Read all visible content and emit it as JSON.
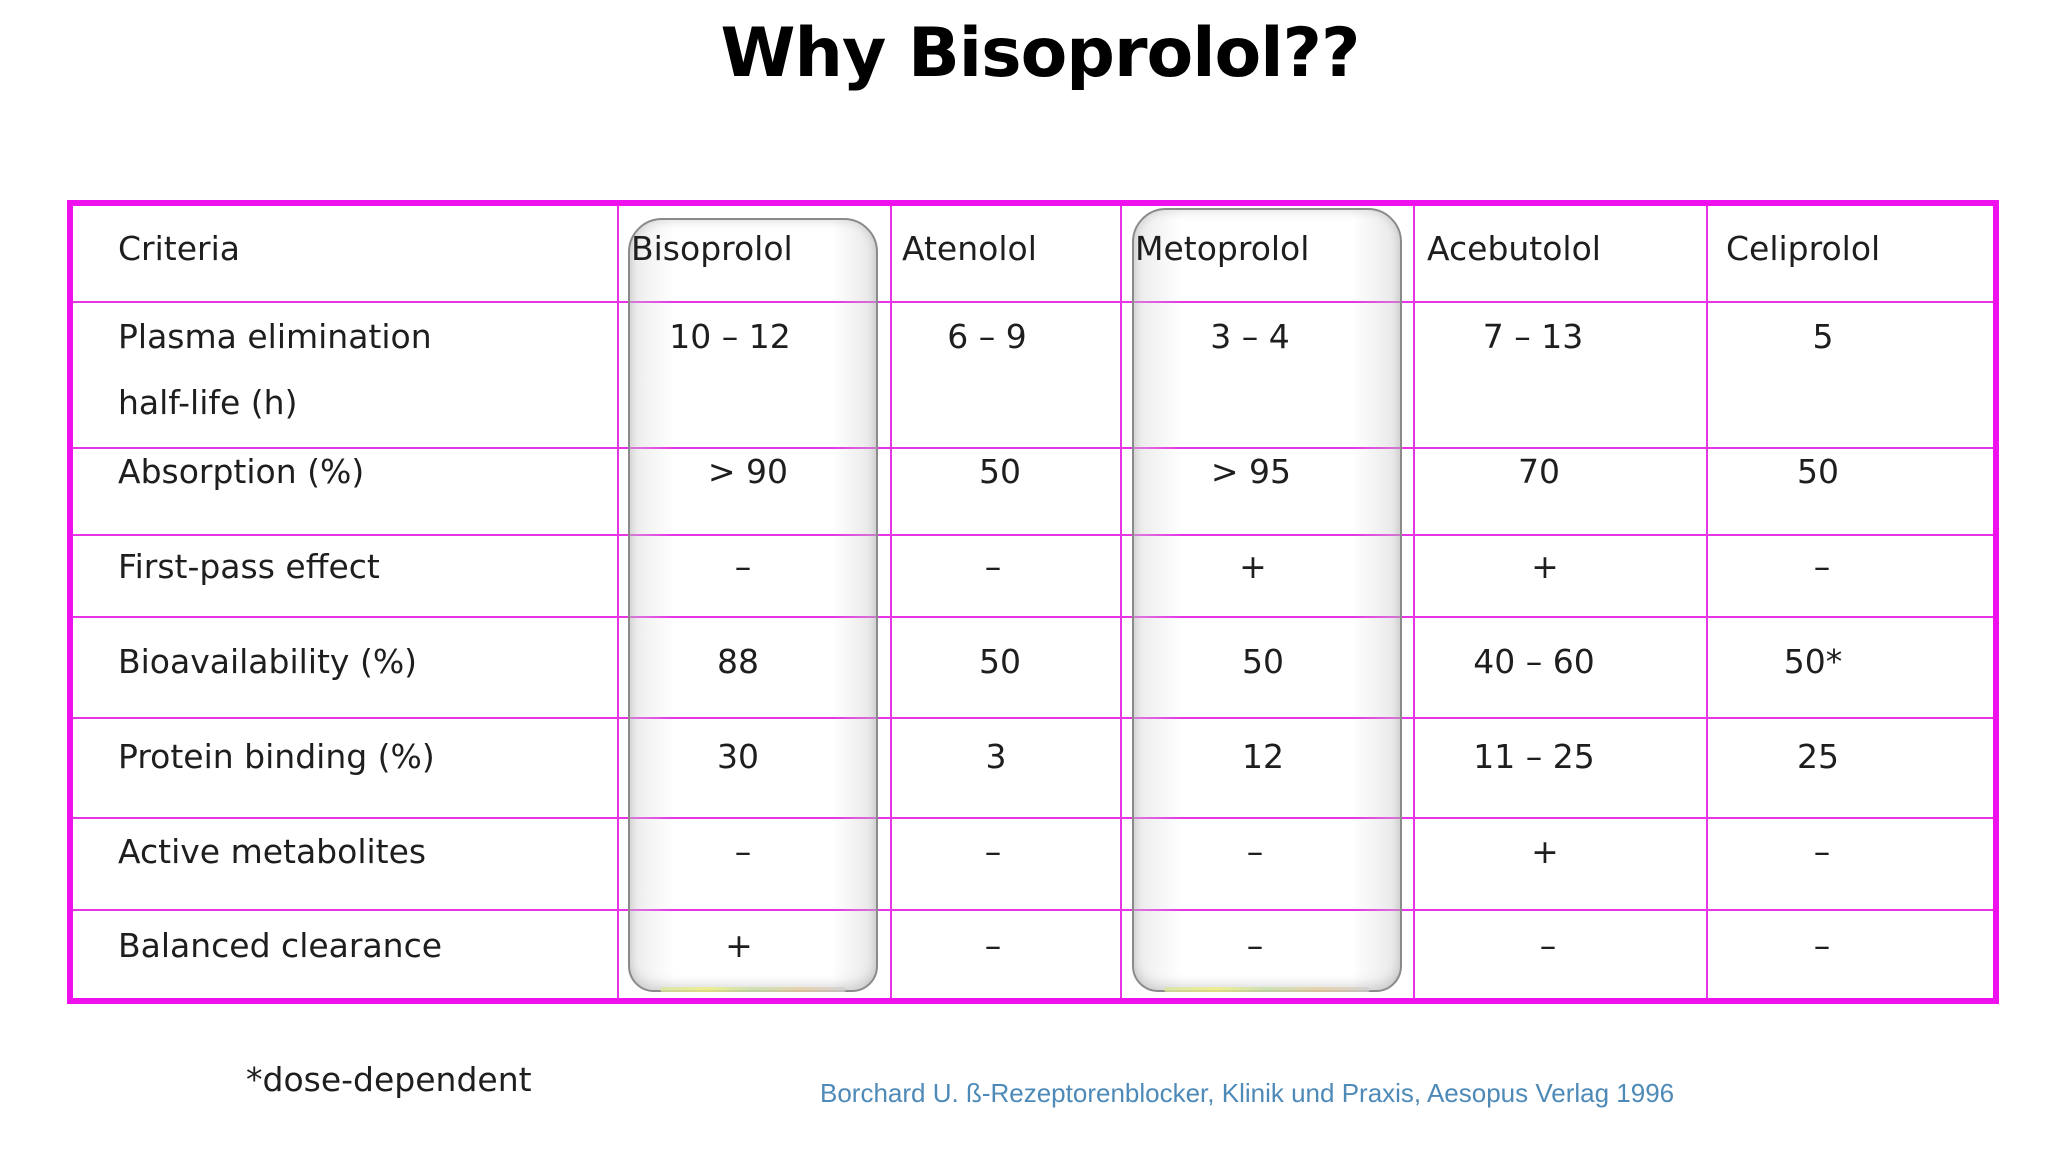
{
  "slide": {
    "title": "Why Bisoprolol??",
    "footnote": "*dose-dependent",
    "citation": "Borchard U. ß-Rezeptorenblocker, Klinik und Praxis, Aesopus Verlag 1996"
  },
  "table": {
    "border_color": "#ee11ee",
    "highlighted_columns": [
      "Bisoprolol",
      "Metoprolol"
    ],
    "headers": [
      "Criteria",
      "Bisoprolol",
      "Atenolol",
      "Metoprolol",
      "Acebutolol",
      "Celiprolol"
    ],
    "rows": [
      {
        "criteria_line1": "Plasma elimination",
        "criteria_line2": "half-life (h)",
        "values": [
          "10 – 12",
          "6 – 9",
          "3 – 4",
          "7 – 13",
          "5"
        ]
      },
      {
        "criteria_line1": "Absorption (%)",
        "criteria_line2": "",
        "values": [
          "> 90",
          "50",
          "> 95",
          "70",
          "50"
        ]
      },
      {
        "criteria_line1": "First-pass effect",
        "criteria_line2": "",
        "values": [
          "–",
          "–",
          "+",
          "+",
          "–"
        ]
      },
      {
        "criteria_line1": "Bioavailability (%)",
        "criteria_line2": "",
        "values": [
          "88",
          "50",
          "50",
          "40 – 60",
          "50*"
        ]
      },
      {
        "criteria_line1": "Protein binding (%)",
        "criteria_line2": "",
        "values": [
          "30",
          "3",
          "12",
          "11 – 25",
          "25"
        ]
      },
      {
        "criteria_line1": "Active metabolites",
        "criteria_line2": "",
        "values": [
          "–",
          "–",
          "–",
          "+",
          "–"
        ]
      },
      {
        "criteria_line1": "Balanced clearance",
        "criteria_line2": "",
        "values": [
          "+",
          "–",
          "–",
          "–",
          "–"
        ]
      }
    ]
  }
}
